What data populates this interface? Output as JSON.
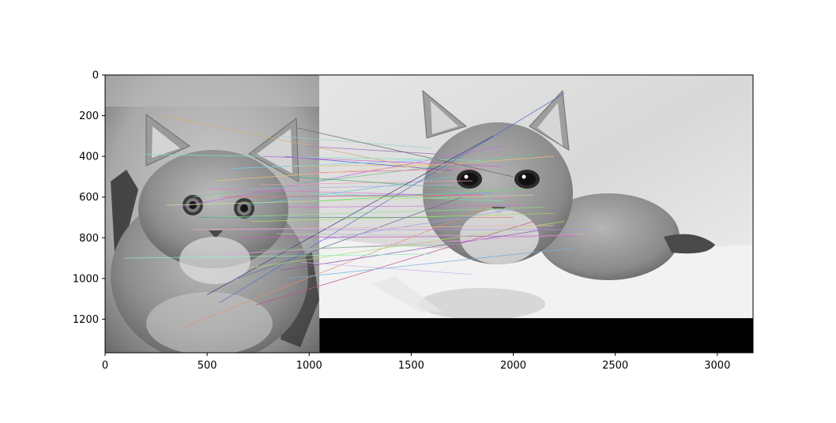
{
  "chart_data": {
    "type": "scatter",
    "title": "",
    "xlabel": "",
    "ylabel": "",
    "xlim": [
      0,
      3175
    ],
    "ylim": [
      1365,
      0
    ],
    "grid": false,
    "x_ticks": [
      0,
      500,
      1000,
      1500,
      2000,
      2500,
      3000
    ],
    "x_tick_labels": [
      "0",
      "500",
      "1000",
      "1500",
      "2000",
      "2500",
      "3000"
    ],
    "y_ticks": [
      0,
      200,
      400,
      600,
      800,
      1000,
      1200
    ],
    "y_tick_labels": [
      "0",
      "200",
      "400",
      "600",
      "800",
      "1000",
      "1200"
    ],
    "images": [
      {
        "name": "kitten-sitting-grayscale",
        "x_range": [
          0,
          1050
        ],
        "y_range": [
          0,
          1365
        ]
      },
      {
        "name": "kitten-lying-grayscale",
        "x_range": [
          1050,
          3175
        ],
        "y_range": [
          0,
          1195
        ]
      }
    ],
    "padding_region": {
      "x_range": [
        1050,
        3175
      ],
      "y_range": [
        1195,
        1365
      ],
      "color": "#000000"
    },
    "match_lines": [
      {
        "x1": 280,
        "y1": 200,
        "x2": 1650,
        "y2": 480,
        "color": "#d8b070"
      },
      {
        "x1": 200,
        "y1": 390,
        "x2": 1850,
        "y2": 420,
        "color": "#7ee0c0"
      },
      {
        "x1": 360,
        "y1": 650,
        "x2": 1950,
        "y2": 350,
        "color": "#c070e0"
      },
      {
        "x1": 430,
        "y1": 600,
        "x2": 2100,
        "y2": 390,
        "color": "#6fc48f"
      },
      {
        "x1": 500,
        "y1": 560,
        "x2": 2000,
        "y2": 600,
        "color": "#e07ad0"
      },
      {
        "x1": 520,
        "y1": 700,
        "x2": 2150,
        "y2": 650,
        "color": "#8fe08f"
      },
      {
        "x1": 600,
        "y1": 760,
        "x2": 2400,
        "y2": 760,
        "color": "#b090f0"
      },
      {
        "x1": 650,
        "y1": 800,
        "x2": 2300,
        "y2": 790,
        "color": "#c060c0"
      },
      {
        "x1": 700,
        "y1": 640,
        "x2": 1700,
        "y2": 500,
        "color": "#60c0e0"
      },
      {
        "x1": 720,
        "y1": 720,
        "x2": 2200,
        "y2": 680,
        "color": "#a0e060"
      },
      {
        "x1": 760,
        "y1": 540,
        "x2": 1800,
        "y2": 520,
        "color": "#f0a0c0"
      },
      {
        "x1": 800,
        "y1": 600,
        "x2": 1900,
        "y2": 580,
        "color": "#70a0f0"
      },
      {
        "x1": 820,
        "y1": 450,
        "x2": 1750,
        "y2": 440,
        "color": "#e0c060"
      },
      {
        "x1": 850,
        "y1": 300,
        "x2": 1600,
        "y2": 360,
        "color": "#90d0d0"
      },
      {
        "x1": 880,
        "y1": 400,
        "x2": 1700,
        "y2": 470,
        "color": "#6060d0"
      },
      {
        "x1": 900,
        "y1": 650,
        "x2": 2050,
        "y2": 640,
        "color": "#d070d0"
      },
      {
        "x1": 920,
        "y1": 500,
        "x2": 1780,
        "y2": 560,
        "color": "#50b070"
      },
      {
        "x1": 950,
        "y1": 700,
        "x2": 2000,
        "y2": 700,
        "color": "#e08060"
      },
      {
        "x1": 980,
        "y1": 350,
        "x2": 1650,
        "y2": 390,
        "color": "#a070c0"
      },
      {
        "x1": 1000,
        "y1": 580,
        "x2": 1950,
        "y2": 620,
        "color": "#70e0b0"
      },
      {
        "x1": 1020,
        "y1": 480,
        "x2": 1850,
        "y2": 460,
        "color": "#f070a0"
      },
      {
        "x1": 560,
        "y1": 1120,
        "x2": 2250,
        "y2": 90,
        "color": "#5070c0"
      },
      {
        "x1": 500,
        "y1": 1080,
        "x2": 1900,
        "y2": 300,
        "color": "#404080"
      },
      {
        "x1": 380,
        "y1": 1240,
        "x2": 1900,
        "y2": 640,
        "color": "#e09070"
      },
      {
        "x1": 740,
        "y1": 1130,
        "x2": 2100,
        "y2": 720,
        "color": "#c05090"
      },
      {
        "x1": 860,
        "y1": 960,
        "x2": 2150,
        "y2": 760,
        "color": "#9050b0"
      },
      {
        "x1": 650,
        "y1": 1000,
        "x2": 1750,
        "y2": 600,
        "color": "#607090"
      },
      {
        "x1": 900,
        "y1": 1000,
        "x2": 2300,
        "y2": 850,
        "color": "#70b0e0"
      },
      {
        "x1": 700,
        "y1": 950,
        "x2": 2250,
        "y2": 720,
        "color": "#b0e070"
      },
      {
        "x1": 960,
        "y1": 920,
        "x2": 1800,
        "y2": 980,
        "color": "#d0b0f0"
      },
      {
        "x1": 600,
        "y1": 880,
        "x2": 2350,
        "y2": 780,
        "color": "#e0a0e0"
      },
      {
        "x1": 760,
        "y1": 860,
        "x2": 1750,
        "y2": 830,
        "color": "#80c080"
      },
      {
        "x1": 90,
        "y1": 900,
        "x2": 1600,
        "y2": 880,
        "color": "#90f0c0"
      },
      {
        "x1": 1000,
        "y1": 820,
        "x2": 2000,
        "y2": 660,
        "color": "#a0a0f0"
      },
      {
        "x1": 840,
        "y1": 780,
        "x2": 1900,
        "y2": 790,
        "color": "#c0c0c0"
      },
      {
        "x1": 540,
        "y1": 520,
        "x2": 2200,
        "y2": 400,
        "color": "#f0c080"
      },
      {
        "x1": 620,
        "y1": 460,
        "x2": 1550,
        "y2": 420,
        "color": "#70d0f0"
      },
      {
        "x1": 460,
        "y1": 700,
        "x2": 1800,
        "y2": 700,
        "color": "#50a0a0"
      },
      {
        "x1": 300,
        "y1": 640,
        "x2": 2100,
        "y2": 590,
        "color": "#c0e090"
      },
      {
        "x1": 940,
        "y1": 260,
        "x2": 2000,
        "y2": 500,
        "color": "#607060"
      },
      {
        "x1": 780,
        "y1": 400,
        "x2": 1950,
        "y2": 450,
        "color": "#d060d0"
      },
      {
        "x1": 1030,
        "y1": 620,
        "x2": 2050,
        "y2": 560,
        "color": "#60e060"
      },
      {
        "x1": 580,
        "y1": 600,
        "x2": 1850,
        "y2": 590,
        "color": "#e07070"
      },
      {
        "x1": 700,
        "y1": 560,
        "x2": 1700,
        "y2": 540,
        "color": "#b0b0e0"
      },
      {
        "x1": 420,
        "y1": 760,
        "x2": 2200,
        "y2": 740,
        "color": "#f0b0b0"
      }
    ]
  }
}
